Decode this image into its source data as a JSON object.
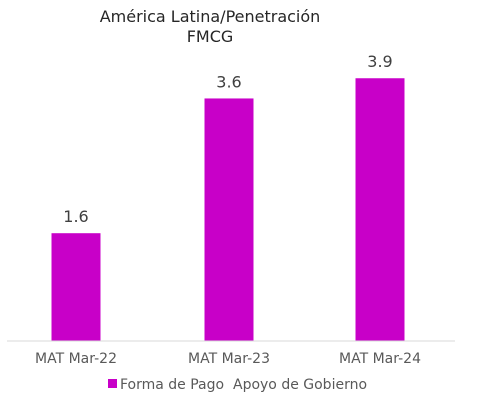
{
  "chart_data": {
    "type": "bar",
    "title": "América Latina/Penetración",
    "subtitle": "FMCG",
    "categories": [
      "MAT Mar-22",
      "MAT Mar-23",
      "MAT Mar-24"
    ],
    "series": [
      {
        "name": "Forma de Pago  Apoyo de Gobierno",
        "values": [
          1.6,
          3.6,
          3.9
        ],
        "color": "#C800C8"
      }
    ],
    "data_labels": [
      "1.6",
      "3.6",
      "3.9"
    ],
    "ylim": [
      0,
      4.72
    ],
    "grid": false,
    "legend_position": "bottom"
  }
}
